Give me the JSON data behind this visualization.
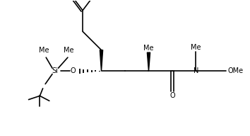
{
  "background_color": "#ffffff",
  "line_color": "#000000",
  "lw": 1.2,
  "fs": 7.0,
  "figsize": [
    3.54,
    1.92
  ],
  "dpi": 100,
  "xlim": [
    0,
    10
  ],
  "ylim": [
    0,
    5.45
  ]
}
